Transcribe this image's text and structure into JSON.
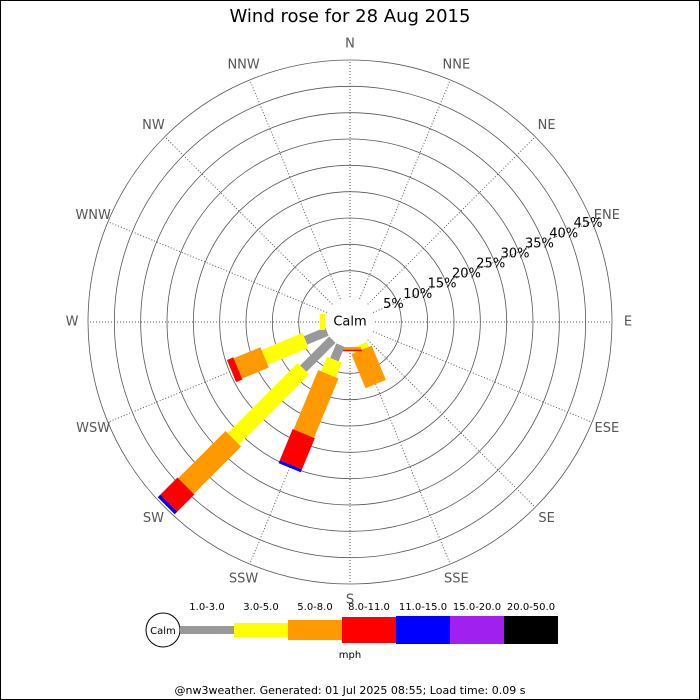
{
  "chart_data": {
    "type": "windrose",
    "title": "Wind rose for 28 Aug 2015",
    "directions": [
      "N",
      "NNE",
      "NE",
      "ENE",
      "E",
      "ESE",
      "SE",
      "SSE",
      "S",
      "SSW",
      "SW",
      "WSW",
      "W",
      "WNW",
      "NW",
      "NNW"
    ],
    "calm_label": "Calm",
    "units": "mph",
    "ylim": [
      0,
      45
    ],
    "yticks": [
      {
        "value": 5,
        "label": "5%"
      },
      {
        "value": 10,
        "label": "10%"
      },
      {
        "value": 15,
        "label": "15%"
      },
      {
        "value": 20,
        "label": "20%"
      },
      {
        "value": 25,
        "label": "25%"
      },
      {
        "value": 30,
        "label": "30%"
      },
      {
        "value": 35,
        "label": "35%"
      },
      {
        "value": 40,
        "label": "40%"
      },
      {
        "value": 45,
        "label": "45%"
      }
    ],
    "series": [
      {
        "name": "1.0-3.0",
        "color": "#999999",
        "values": [
          0,
          0,
          0,
          0,
          0,
          0,
          0,
          0,
          0,
          3,
          7.8,
          4.4,
          0,
          0,
          0,
          0
        ]
      },
      {
        "name": "3.0-5.0",
        "color": "#ffff00",
        "values": [
          0,
          0,
          0,
          0,
          0,
          0,
          0,
          1,
          0,
          3,
          18.8,
          8.4,
          1,
          0,
          0,
          0
        ]
      },
      {
        "name": "5.0-8.0",
        "color": "#ff9900",
        "values": [
          0,
          0,
          0,
          0,
          0,
          0,
          0,
          7,
          0.5,
          12.2,
          12.7,
          5.5,
          0,
          0,
          0,
          0
        ]
      },
      {
        "name": "8.0-11.0",
        "color": "#ff0000",
        "values": [
          0,
          0,
          0,
          0,
          0,
          0,
          0,
          0,
          0.3,
          6.4,
          4.6,
          1.3,
          0,
          0,
          0,
          0
        ]
      },
      {
        "name": "11.0-15.0",
        "color": "#0000ff",
        "values": [
          0,
          0,
          0,
          0,
          0,
          0,
          0,
          0,
          0,
          0.6,
          0.7,
          0,
          0,
          0,
          0,
          0
        ]
      },
      {
        "name": "15.0-20.0",
        "color": "#a020f0",
        "values": [
          0,
          0,
          0,
          0,
          0,
          0,
          0,
          0,
          0,
          0,
          0,
          0,
          0,
          0,
          0,
          0
        ]
      },
      {
        "name": "20.0-50.0",
        "color": "#000000",
        "values": [
          0,
          0,
          0,
          0,
          0,
          0,
          0,
          0,
          0,
          0,
          0,
          0,
          0,
          0,
          0,
          0
        ]
      }
    ],
    "footer": "@nw3weather. Generated: 01 Jul 2025 08:55; Load time: 0.09 s"
  }
}
